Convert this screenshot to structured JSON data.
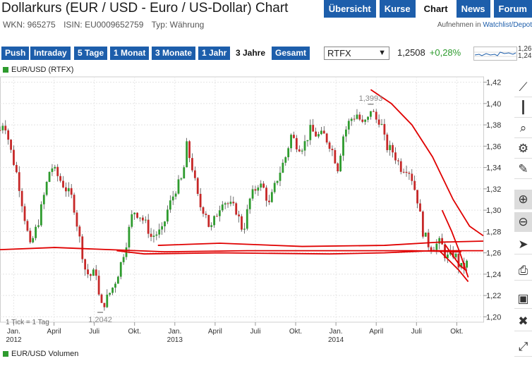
{
  "header": {
    "title": "Dollarkurs (EUR / USD - Euro / US-Dollar) Chart",
    "wkn": "WKN: 965275",
    "isin": "ISIN: EU0009652759",
    "typ": "Typ: Währung"
  },
  "nav": {
    "tabs": [
      {
        "label": "Übersicht",
        "active": false
      },
      {
        "label": "Kurse",
        "active": false
      },
      {
        "label": "Chart",
        "active": true
      },
      {
        "label": "News",
        "active": false
      },
      {
        "label": "Forum",
        "active": false
      }
    ],
    "watchlist_prefix": "Aufnehmen in ",
    "watchlist_link": "Watchlist/Depot"
  },
  "toolbar": {
    "ranges": [
      "Push",
      "Intraday",
      "5 Tage",
      "1 Monat",
      "3 Monate",
      "1 Jahr",
      "3 Jahre",
      "Gesamt"
    ],
    "active_range": "3 Jahre",
    "exchange": "RTFX",
    "price": "1,2508",
    "change": "+0,28%",
    "spark_high": "1,26",
    "spark_low": "1,24"
  },
  "legend": {
    "main": "EUR/USD (RTFX)",
    "volume": "EUR/USD Volumen",
    "tick_note": "1 Tick = 1 Tag"
  },
  "side_tools": [
    "trend-line-tool-icon",
    "candles-tool-icon",
    "zoom-area-icon",
    "settings-gear-icon",
    "pencil-tool-icon",
    "zoom-in-icon",
    "zoom-out-icon",
    "pointer-icon",
    "print-icon",
    "save-icon",
    "delete-icon",
    "expand-icon"
  ],
  "colors": {
    "accent": "#1d5eab",
    "up": "#2e9b2e",
    "down": "#c62828",
    "annotation": "#e00000"
  },
  "chart_data": {
    "type": "candlestick",
    "title": "EUR/USD (RTFX)",
    "x_labels": [
      "Jan.",
      "April",
      "Juli",
      "Okt.",
      "Jan.",
      "April",
      "Juli",
      "Okt.",
      "Jan.",
      "April",
      "Juli",
      "Okt."
    ],
    "year_labels": [
      "2012",
      "2013",
      "2014"
    ],
    "y_ticks": [
      "1,42",
      "1,40",
      "1,38",
      "1,36",
      "1,34",
      "1,32",
      "1,30",
      "1,28",
      "1,26",
      "1,24",
      "1,22",
      "1,20"
    ],
    "ylim": [
      1.195,
      1.425
    ],
    "x_range": [
      0,
      35.2
    ],
    "annotations": [
      {
        "label": "1,3993",
        "x": 27.0,
        "y": 1.3993
      },
      {
        "label": "1,2042",
        "x": 7.3,
        "y": 1.2042
      }
    ],
    "path": [
      [
        0.0,
        1.375
      ],
      [
        0.3,
        1.385
      ],
      [
        0.8,
        1.355
      ],
      [
        1.3,
        1.33
      ],
      [
        1.7,
        1.3
      ],
      [
        2.2,
        1.265
      ],
      [
        2.8,
        1.29
      ],
      [
        3.4,
        1.325
      ],
      [
        3.7,
        1.342
      ],
      [
        4.3,
        1.33
      ],
      [
        4.8,
        1.32
      ],
      [
        5.3,
        1.31
      ],
      [
        5.7,
        1.28
      ],
      [
        6.2,
        1.245
      ],
      [
        6.5,
        1.238
      ],
      [
        7.0,
        1.242
      ],
      [
        7.3,
        1.208
      ],
      [
        7.7,
        1.215
      ],
      [
        8.3,
        1.23
      ],
      [
        8.7,
        1.245
      ],
      [
        9.2,
        1.27
      ],
      [
        9.7,
        1.3
      ],
      [
        10.2,
        1.295
      ],
      [
        10.7,
        1.285
      ],
      [
        11.0,
        1.275
      ],
      [
        11.4,
        1.278
      ],
      [
        11.8,
        1.28
      ],
      [
        12.2,
        1.3
      ],
      [
        12.8,
        1.32
      ],
      [
        13.3,
        1.33
      ],
      [
        13.6,
        1.36
      ],
      [
        14.0,
        1.34
      ],
      [
        14.5,
        1.305
      ],
      [
        15.0,
        1.298
      ],
      [
        15.3,
        1.28
      ],
      [
        15.7,
        1.294
      ],
      [
        16.2,
        1.31
      ],
      [
        16.7,
        1.305
      ],
      [
        17.2,
        1.3
      ],
      [
        17.7,
        1.28
      ],
      [
        18.2,
        1.31
      ],
      [
        18.8,
        1.325
      ],
      [
        19.2,
        1.32
      ],
      [
        19.6,
        1.305
      ],
      [
        20.2,
        1.33
      ],
      [
        20.8,
        1.35
      ],
      [
        21.2,
        1.37
      ],
      [
        21.7,
        1.36
      ],
      [
        22.1,
        1.36
      ],
      [
        22.6,
        1.375
      ],
      [
        23.1,
        1.37
      ],
      [
        23.6,
        1.37
      ],
      [
        24.1,
        1.36
      ],
      [
        24.6,
        1.34
      ],
      [
        25.0,
        1.37
      ],
      [
        25.5,
        1.385
      ],
      [
        26.0,
        1.39
      ],
      [
        26.4,
        1.38
      ],
      [
        26.8,
        1.385
      ],
      [
        27.0,
        1.395
      ],
      [
        27.4,
        1.385
      ],
      [
        27.7,
        1.385
      ],
      [
        28.1,
        1.36
      ],
      [
        28.6,
        1.355
      ],
      [
        29.2,
        1.34
      ],
      [
        29.7,
        1.34
      ],
      [
        30.0,
        1.33
      ],
      [
        30.4,
        1.31
      ],
      [
        30.8,
        1.28
      ],
      [
        31.3,
        1.265
      ],
      [
        31.8,
        1.268
      ],
      [
        32.1,
        1.27
      ],
      [
        32.5,
        1.255
      ],
      [
        33.1,
        1.26
      ],
      [
        33.5,
        1.245
      ],
      [
        34.0,
        1.25
      ]
    ],
    "drawn_lines": [
      {
        "points": [
          [
            0.0,
            1.263
          ],
          [
            4.0,
            1.265
          ],
          [
            8.0,
            1.263
          ],
          [
            12.0,
            1.261
          ],
          [
            18.0,
            1.262
          ],
          [
            26.0,
            1.262
          ],
          [
            30.0,
            1.262
          ],
          [
            33.6,
            1.261
          ]
        ]
      },
      {
        "points": [
          [
            8.5,
            1.262
          ],
          [
            10.5,
            1.259
          ],
          [
            16.0,
            1.26
          ],
          [
            24.0,
            1.259
          ],
          [
            28.0,
            1.26
          ],
          [
            31.5,
            1.262
          ],
          [
            35.2,
            1.262
          ]
        ]
      },
      {
        "points": [
          [
            11.5,
            1.267
          ],
          [
            16.0,
            1.269
          ],
          [
            22.0,
            1.266
          ],
          [
            28.0,
            1.267
          ],
          [
            32.0,
            1.27
          ],
          [
            35.2,
            1.271
          ]
        ]
      },
      {
        "points": [
          [
            27.0,
            1.413
          ],
          [
            28.5,
            1.4
          ],
          [
            30.0,
            1.38
          ],
          [
            31.5,
            1.35
          ],
          [
            33.0,
            1.31
          ],
          [
            34.2,
            1.285
          ],
          [
            35.2,
            1.276
          ]
        ]
      },
      {
        "points": [
          [
            32.2,
            1.3
          ],
          [
            32.9,
            1.28
          ],
          [
            33.5,
            1.26
          ],
          [
            34.1,
            1.237
          ]
        ]
      },
      {
        "points": [
          [
            32.0,
            1.262
          ],
          [
            33.4,
            1.244
          ],
          [
            34.1,
            1.233
          ]
        ]
      },
      {
        "points": [
          [
            32.4,
            1.268
          ],
          [
            33.5,
            1.248
          ],
          [
            34.0,
            1.243
          ]
        ]
      }
    ]
  }
}
